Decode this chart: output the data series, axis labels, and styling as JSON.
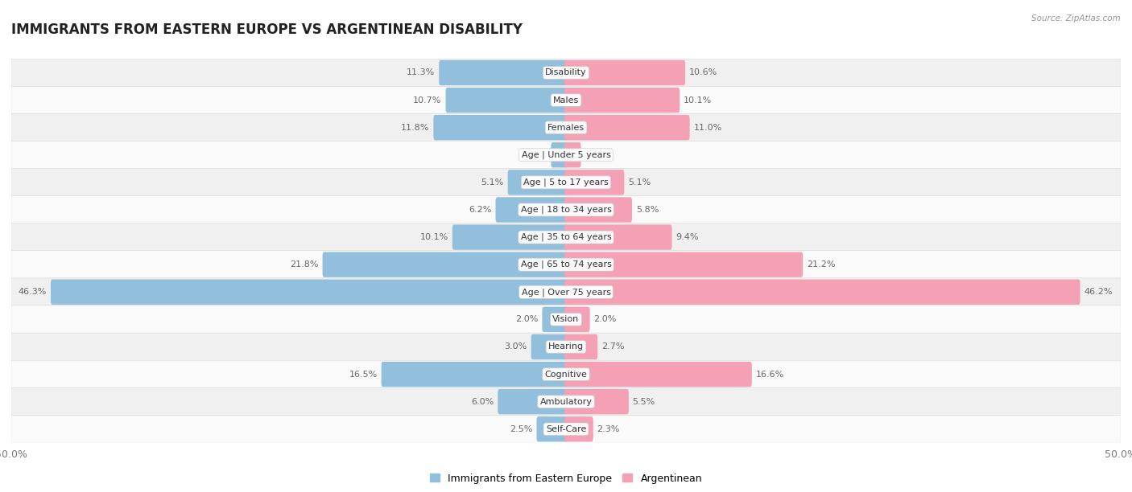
{
  "title": "IMMIGRANTS FROM EASTERN EUROPE VS ARGENTINEAN DISABILITY",
  "source": "Source: ZipAtlas.com",
  "categories": [
    "Disability",
    "Males",
    "Females",
    "Age | Under 5 years",
    "Age | 5 to 17 years",
    "Age | 18 to 34 years",
    "Age | 35 to 64 years",
    "Age | 65 to 74 years",
    "Age | Over 75 years",
    "Vision",
    "Hearing",
    "Cognitive",
    "Ambulatory",
    "Self-Care"
  ],
  "left_values": [
    11.3,
    10.7,
    11.8,
    1.2,
    5.1,
    6.2,
    10.1,
    21.8,
    46.3,
    2.0,
    3.0,
    16.5,
    6.0,
    2.5
  ],
  "right_values": [
    10.6,
    10.1,
    11.0,
    1.2,
    5.1,
    5.8,
    9.4,
    21.2,
    46.2,
    2.0,
    2.7,
    16.6,
    5.5,
    2.3
  ],
  "left_color": "#92C0DC",
  "right_color": "#F4A0B5",
  "left_label": "Immigrants from Eastern Europe",
  "right_label": "Argentinean",
  "axis_max": 50.0,
  "background_color": "#ffffff",
  "row_bg_odd": "#f0f0f0",
  "row_bg_even": "#fafafa",
  "title_fontsize": 12,
  "value_fontsize": 8,
  "category_fontsize": 8,
  "legend_fontsize": 9
}
